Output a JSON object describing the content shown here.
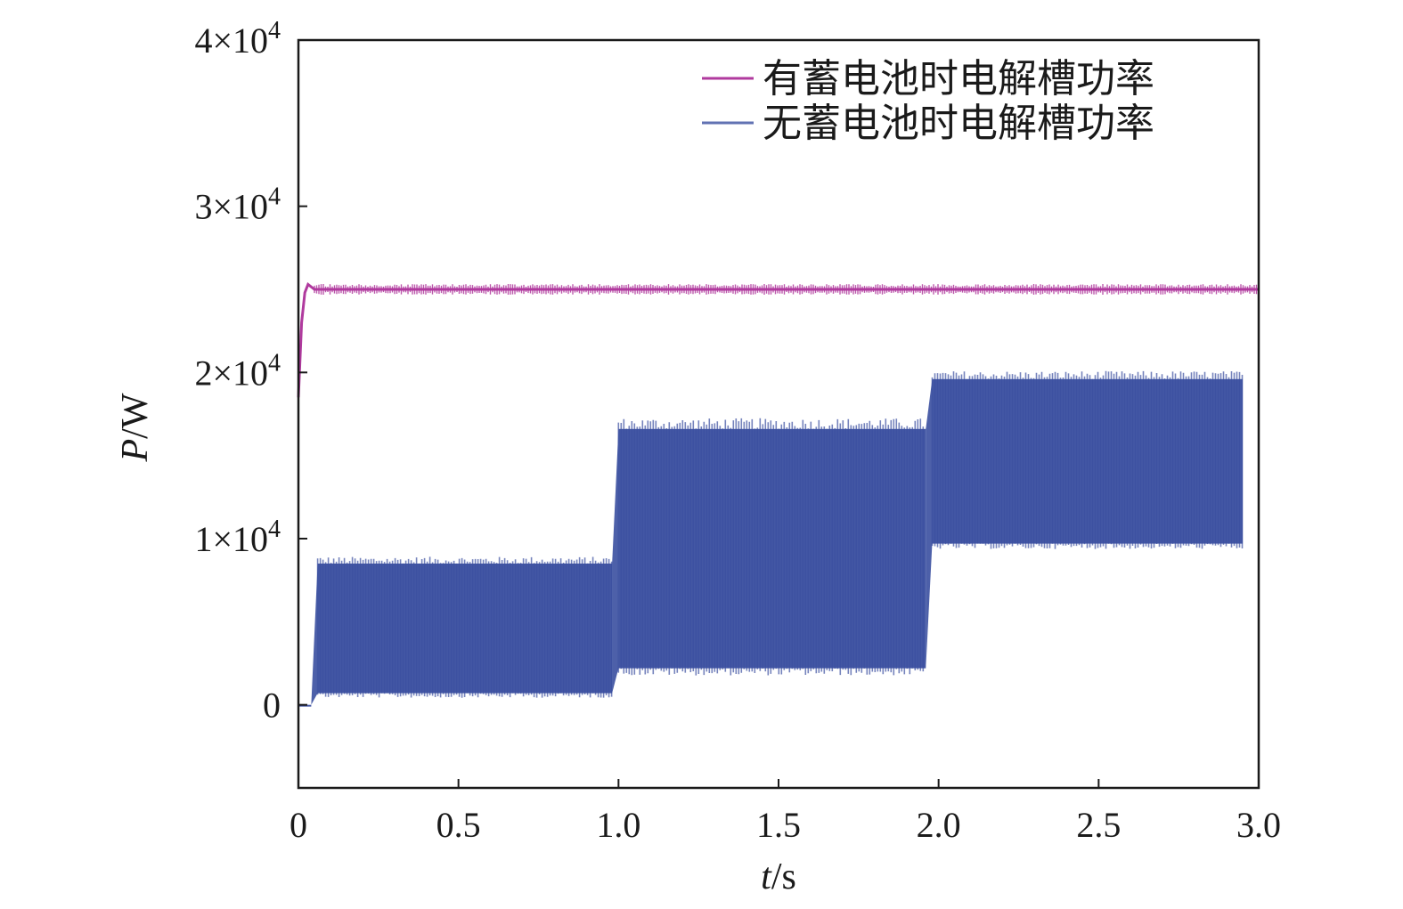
{
  "chart_data": {
    "type": "line",
    "xlabel": {
      "italic": "t",
      "unit": "/s"
    },
    "ylabel": {
      "italic": "P",
      "unit": "/W"
    },
    "xlim": [
      0,
      3.0
    ],
    "ylim": [
      -5000,
      40000
    ],
    "x_ticks": [
      0,
      0.5,
      1.0,
      1.5,
      2.0,
      2.5,
      3.0
    ],
    "x_tick_labels": [
      "0",
      "0.5",
      "1.0",
      "1.5",
      "2.0",
      "2.5",
      "3.0"
    ],
    "y_ticks": [
      0,
      10000,
      20000,
      30000,
      40000
    ],
    "y_tick_labels": [
      {
        "mantissa": "0",
        "exp": ""
      },
      {
        "mantissa": "1×10",
        "exp": "4"
      },
      {
        "mantissa": "2×10",
        "exp": "4"
      },
      {
        "mantissa": "3×10",
        "exp": "4"
      },
      {
        "mantissa": "4×10",
        "exp": "4"
      }
    ],
    "grid": false,
    "legend_position": "top-right",
    "series": [
      {
        "name": "有蓄电池时电解槽功率",
        "color": "#b03a9e",
        "points": [
          [
            0,
            18500
          ],
          [
            0.01,
            23000
          ],
          [
            0.02,
            24800
          ],
          [
            0.03,
            25300
          ],
          [
            0.05,
            25000
          ],
          [
            0.5,
            25000
          ],
          [
            1.0,
            25000
          ],
          [
            1.5,
            25000
          ],
          [
            2.0,
            25000
          ],
          [
            2.5,
            25000
          ],
          [
            3.0,
            25000
          ]
        ],
        "ripple": 200
      },
      {
        "name": "无蓄电池时电解槽功率",
        "color": "#3a4fa0",
        "envelope": [
          {
            "x0": 0.0,
            "x1": 0.04,
            "lower": 0,
            "upper": 0
          },
          {
            "x0": 0.06,
            "x1": 0.98,
            "lower": 700,
            "upper": 8500
          },
          {
            "x0": 1.0,
            "x1": 1.96,
            "lower": 2200,
            "upper": 16600
          },
          {
            "x0": 1.98,
            "x1": 2.95,
            "lower": 9700,
            "upper": 19600
          }
        ]
      }
    ]
  }
}
